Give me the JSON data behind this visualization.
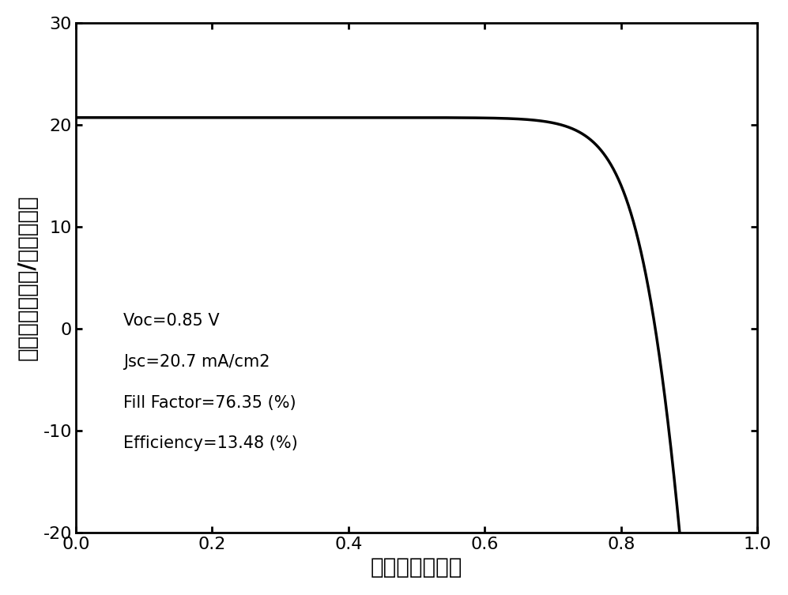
{
  "Jsc": 20.7,
  "Voc": 0.85,
  "fill_factor": 76.35,
  "efficiency": 13.48,
  "xlim": [
    0.0,
    1.0
  ],
  "ylim": [
    -20,
    30
  ],
  "xticks": [
    0.0,
    0.2,
    0.4,
    0.6,
    0.8,
    1.0
  ],
  "yticks": [
    -20,
    -10,
    0,
    10,
    20,
    30
  ],
  "xlabel": "电压　（伏特）",
  "ylabel": "电流密度（毫安/平方厘米）",
  "line_color": "#000000",
  "line_width": 2.5,
  "background_color": "#ffffff",
  "annotation_lines": [
    "Voc=0.85 V",
    "Jsc=20.7 mA/cm2",
    "Fill Factor=76.35 (%)",
    "Efficiency=13.48 (%)"
  ],
  "annotation_fontsize": 15,
  "axis_label_fontsize": 20,
  "tick_fontsize": 16,
  "n_Vt": 0.038,
  "Rs": 0.5,
  "V_max": 0.915
}
